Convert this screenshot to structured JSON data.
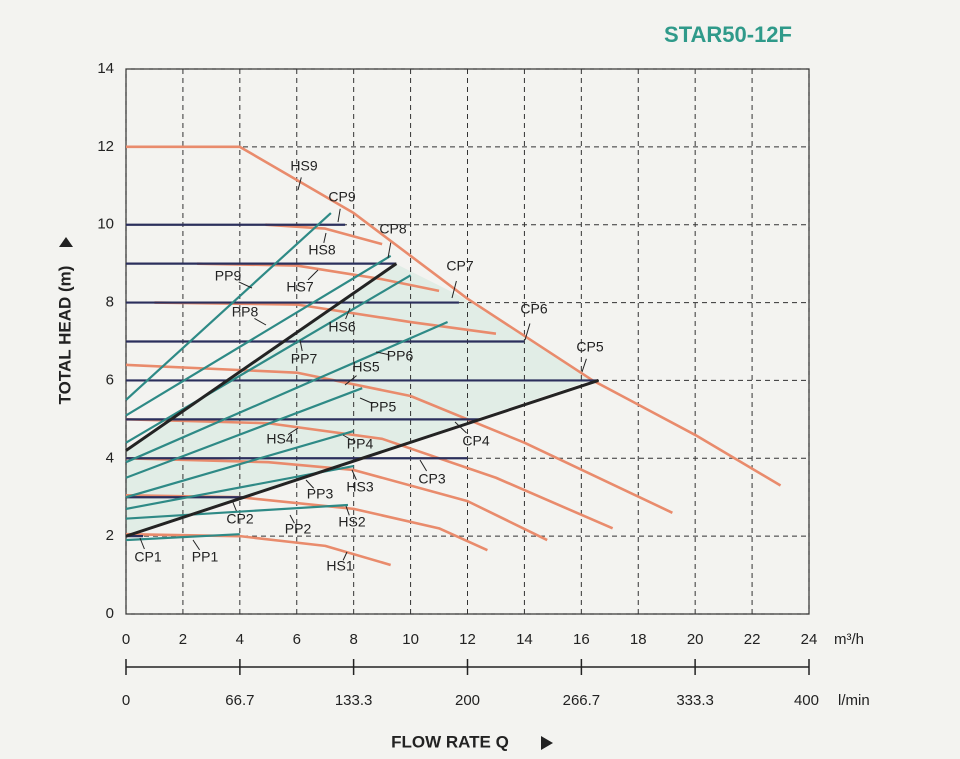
{
  "chart_data": {
    "type": "line",
    "title": "STAR50-12F",
    "ylabel": "TOTAL HEAD (m)",
    "xlabel": "FLOW RATE Q",
    "xunit": "m³/h",
    "x2unit": "l/min",
    "xlim": [
      0,
      24
    ],
    "xticks": [
      0,
      2,
      4,
      6,
      8,
      10,
      12,
      14,
      16,
      18,
      20,
      22,
      24
    ],
    "ylim": [
      0,
      14
    ],
    "yticks": [
      0,
      2,
      4,
      6,
      8,
      10,
      12,
      14
    ],
    "x2lim": [
      0,
      400
    ],
    "x2ticks": [
      0,
      66.7,
      133.3,
      200,
      266.7,
      333.3,
      400
    ],
    "grid": true,
    "series": [
      {
        "name": "HS1",
        "color": "#e98b6c",
        "x": [
          0,
          4,
          7,
          9.3
        ],
        "values": [
          2.05,
          2.0,
          1.75,
          1.26
        ]
      },
      {
        "name": "HS2",
        "color": "#e98b6c",
        "x": [
          0,
          4,
          8,
          11,
          12.7
        ],
        "values": [
          3.05,
          3.0,
          2.7,
          2.2,
          1.64
        ]
      },
      {
        "name": "HS3",
        "color": "#e98b6c",
        "x": [
          0,
          5,
          8,
          12,
          14.8
        ],
        "values": [
          4.0,
          3.9,
          3.7,
          2.9,
          1.9
        ]
      },
      {
        "name": "HS4",
        "color": "#e98b6c",
        "x": [
          0,
          5,
          9,
          13,
          17.1
        ],
        "values": [
          5.0,
          4.9,
          4.5,
          3.5,
          2.2
        ]
      },
      {
        "name": "HS5",
        "color": "#e98b6c",
        "x": [
          0,
          6,
          10,
          14,
          19.2
        ],
        "values": [
          6.4,
          6.2,
          5.6,
          4.4,
          2.6
        ]
      },
      {
        "name": "HS6",
        "color": "#e98b6c",
        "x": [
          1,
          6,
          10,
          13
        ],
        "values": [
          8.0,
          7.95,
          7.5,
          7.2
        ]
      },
      {
        "name": "HS7",
        "color": "#e98b6c",
        "x": [
          2.5,
          6,
          9,
          11
        ],
        "values": [
          9.0,
          8.95,
          8.6,
          8.3
        ]
      },
      {
        "name": "HS8",
        "color": "#e98b6c",
        "x": [
          4.9,
          7,
          9
        ],
        "values": [
          10.0,
          9.9,
          9.5
        ]
      },
      {
        "name": "HS9",
        "color": "#e98b6c",
        "x": [
          0,
          4,
          8,
          12,
          16.4,
          20,
          23
        ],
        "values": [
          12.0,
          12.0,
          10.3,
          8.1,
          6.0,
          4.6,
          3.3
        ]
      },
      {
        "name": "CP1",
        "color": "#2b2f5c",
        "x": [
          0,
          0.6
        ],
        "values": [
          2.0,
          2.0
        ]
      },
      {
        "name": "CP2",
        "color": "#2b2f5c",
        "x": [
          0,
          4.1
        ],
        "values": [
          3.0,
          3.0
        ]
      },
      {
        "name": "CP3",
        "color": "#2b2f5c",
        "x": [
          0,
          12
        ],
        "values": [
          4.0,
          4.0
        ]
      },
      {
        "name": "CP4",
        "color": "#2b2f5c",
        "x": [
          0,
          12.5
        ],
        "values": [
          5.0,
          5.0
        ]
      },
      {
        "name": "CP5",
        "color": "#2b2f5c",
        "x": [
          0,
          16.6
        ],
        "values": [
          6.0,
          6.0
        ]
      },
      {
        "name": "CP6",
        "color": "#2b2f5c",
        "x": [
          0,
          14
        ],
        "values": [
          7.0,
          7.0
        ]
      },
      {
        "name": "CP7",
        "color": "#2b2f5c",
        "x": [
          0,
          11.7
        ],
        "values": [
          8.0,
          8.0
        ]
      },
      {
        "name": "CP8",
        "color": "#2b2f5c",
        "x": [
          0,
          9.5
        ],
        "values": [
          9.0,
          9.0
        ]
      },
      {
        "name": "CP9",
        "color": "#2b2f5c",
        "x": [
          0,
          7.7
        ],
        "values": [
          10.0,
          10.0
        ]
      },
      {
        "name": "PP1",
        "color": "#2e8a86",
        "x": [
          0,
          4
        ],
        "values": [
          1.9,
          2.05
        ]
      },
      {
        "name": "PP2",
        "color": "#2e8a86",
        "x": [
          0,
          7.8
        ],
        "values": [
          2.45,
          2.8
        ]
      },
      {
        "name": "PP3",
        "color": "#2e8a86",
        "x": [
          0,
          8
        ],
        "values": [
          2.7,
          3.8
        ]
      },
      {
        "name": "PP4",
        "color": "#2e8a86",
        "x": [
          0,
          8
        ],
        "values": [
          3.0,
          4.7
        ]
      },
      {
        "name": "PP5",
        "color": "#2e8a86",
        "x": [
          0,
          8.3
        ],
        "values": [
          3.5,
          5.8
        ]
      },
      {
        "name": "PP6",
        "color": "#2e8a86",
        "x": [
          0,
          11.3
        ],
        "values": [
          3.9,
          7.5
        ]
      },
      {
        "name": "PP7",
        "color": "#2e8a86",
        "x": [
          0,
          10
        ],
        "values": [
          4.4,
          8.7
        ]
      },
      {
        "name": "PP8",
        "color": "#2e8a86",
        "x": [
          0,
          9.3
        ],
        "values": [
          5.1,
          9.2
        ]
      },
      {
        "name": "PP9",
        "color": "#2e8a86",
        "x": [
          0,
          7.2
        ],
        "values": [
          5.5,
          10.3
        ]
      },
      {
        "color": "#232323",
        "x": [
          0,
          9.5
        ],
        "values": [
          4.2,
          9.0
        ]
      },
      {
        "color": "#232323",
        "x": [
          0,
          16.6
        ],
        "values": [
          2.0,
          6.0
        ]
      }
    ]
  }
}
